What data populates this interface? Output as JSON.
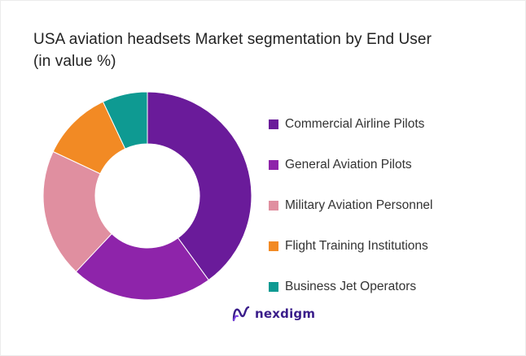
{
  "title": {
    "line1": "USA aviation headsets Market segmentation by End User",
    "line2": "(in value %)"
  },
  "chart_data": {
    "type": "pie",
    "variant": "donut",
    "categories": [
      "Commercial Airline Pilots",
      "General Aviation Pilots",
      "Military Aviation Personnel",
      "Flight Training Institutions",
      "Business Jet Operators"
    ],
    "values": [
      40,
      22,
      20,
      11,
      7
    ],
    "colors": [
      "#6a1b9a",
      "#8e24aa",
      "#e08fa0",
      "#f28a24",
      "#0e9a92"
    ],
    "start_angle_deg": 0,
    "direction": "clockwise",
    "legend_position": "right",
    "title": "USA aviation headsets Market segmentation by End User (in value %)"
  },
  "brand": {
    "icon": "nexdigm-logo-icon",
    "name": "nexdigm",
    "color": "#3a1d8a"
  }
}
